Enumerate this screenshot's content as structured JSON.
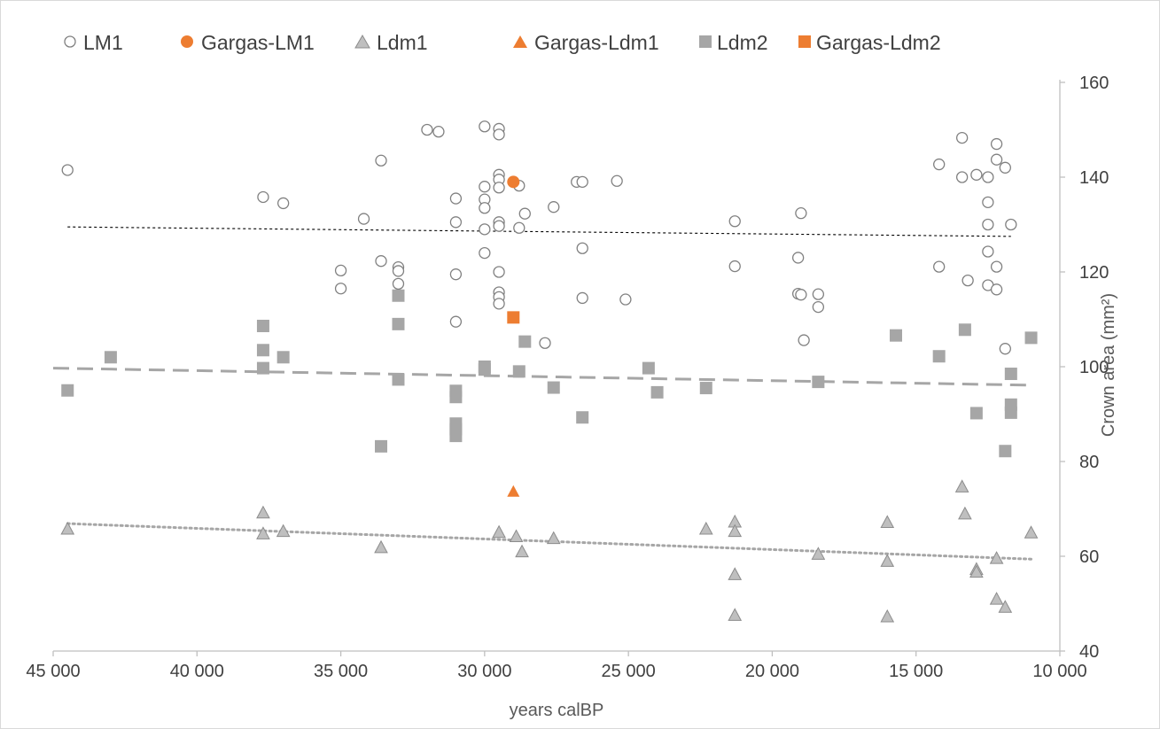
{
  "chart_data": {
    "type": "scatter",
    "title": "",
    "xlabel": "years calBP",
    "ylabel": "Crown area (mm²)",
    "x_reversed": true,
    "xlim": [
      45000,
      10000
    ],
    "ylim": [
      40,
      160
    ],
    "x_ticks": [
      45000,
      40000,
      35000,
      30000,
      25000,
      20000,
      15000,
      10000
    ],
    "x_tick_labels": [
      "45 000",
      "40 000",
      "35 000",
      "30 000",
      "25 000",
      "20 000",
      "15 000",
      "10 000"
    ],
    "y_ticks": [
      40,
      60,
      80,
      100,
      120,
      140,
      160
    ],
    "y_tick_labels": [
      "40",
      "60",
      "80",
      "100",
      "120",
      "140",
      "160"
    ],
    "y_axis_side": "right",
    "grid": false,
    "legend": {
      "position": "top"
    },
    "colors": {
      "gray": "#a6a6a6",
      "orange": "#ed7d31",
      "open_edge": "#808080",
      "axis": "#bfbfbf",
      "text": "#404040"
    },
    "series": [
      {
        "name": "LM1",
        "marker": "open-circle",
        "points": [
          [
            44500,
            141.5
          ],
          [
            37700,
            135.8
          ],
          [
            37000,
            134.5
          ],
          [
            35000,
            120.3
          ],
          [
            35000,
            116.5
          ],
          [
            34200,
            131.2
          ],
          [
            33600,
            143.5
          ],
          [
            33600,
            122.3
          ],
          [
            33000,
            121
          ],
          [
            33000,
            120.2
          ],
          [
            33000,
            117.5
          ],
          [
            32000,
            150
          ],
          [
            31600,
            149.6
          ],
          [
            31000,
            135.5
          ],
          [
            31000,
            130.5
          ],
          [
            31000,
            119.5
          ],
          [
            31000,
            109.5
          ],
          [
            30000,
            150.7
          ],
          [
            30000,
            138
          ],
          [
            30000,
            135.3
          ],
          [
            30000,
            133.5
          ],
          [
            30000,
            129
          ],
          [
            30000,
            124
          ],
          [
            29500,
            150.2
          ],
          [
            29500,
            149
          ],
          [
            29500,
            140.5
          ],
          [
            29500,
            139.5
          ],
          [
            29500,
            137.8
          ],
          [
            29500,
            130.5
          ],
          [
            29500,
            129.7
          ],
          [
            29500,
            120
          ],
          [
            29500,
            115.7
          ],
          [
            29500,
            114.7
          ],
          [
            29500,
            113.3
          ],
          [
            28800,
            138.2
          ],
          [
            28600,
            132.3
          ],
          [
            28800,
            129.3
          ],
          [
            27600,
            133.7
          ],
          [
            26800,
            139
          ],
          [
            26600,
            139
          ],
          [
            26600,
            125
          ],
          [
            26600,
            114.5
          ],
          [
            27900,
            105
          ],
          [
            25400,
            139.2
          ],
          [
            25100,
            114.2
          ],
          [
            21300,
            130.7
          ],
          [
            21300,
            121.2
          ],
          [
            19000,
            132.4
          ],
          [
            19100,
            123
          ],
          [
            19100,
            115.4
          ],
          [
            19000,
            115.2
          ],
          [
            18400,
            115.3
          ],
          [
            18400,
            112.6
          ],
          [
            18900,
            105.6
          ],
          [
            14200,
            142.7
          ],
          [
            14200,
            121.1
          ],
          [
            13400,
            148.3
          ],
          [
            13400,
            140
          ],
          [
            13200,
            118.2
          ],
          [
            12900,
            140.5
          ],
          [
            12500,
            140
          ],
          [
            12500,
            134.7
          ],
          [
            12500,
            130
          ],
          [
            12500,
            124.3
          ],
          [
            12500,
            117.2
          ],
          [
            12200,
            147
          ],
          [
            12200,
            143.7
          ],
          [
            12200,
            121.1
          ],
          [
            12200,
            116.3
          ],
          [
            11900,
            142
          ],
          [
            11700,
            130
          ],
          [
            11900,
            103.8
          ]
        ]
      },
      {
        "name": "Gargas-LM1",
        "marker": "filled-circle",
        "points": [
          [
            29000,
            139
          ]
        ]
      },
      {
        "name": "Ldm1",
        "marker": "triangle",
        "points": [
          [
            44500,
            65.8
          ],
          [
            37700,
            69.2
          ],
          [
            37700,
            64.8
          ],
          [
            37000,
            65.3
          ],
          [
            33600,
            61.9
          ],
          [
            29500,
            65.1
          ],
          [
            28900,
            64.2
          ],
          [
            28700,
            61
          ],
          [
            27600,
            63.8
          ],
          [
            22300,
            65.8
          ],
          [
            21300,
            67.3
          ],
          [
            21300,
            65.3
          ],
          [
            21300,
            56.2
          ],
          [
            21300,
            47.6
          ],
          [
            18400,
            60.5
          ],
          [
            16000,
            67.2
          ],
          [
            16000,
            59
          ],
          [
            16000,
            47.3
          ],
          [
            13400,
            74.7
          ],
          [
            13300,
            69
          ],
          [
            12900,
            57.3
          ],
          [
            12900,
            56.7
          ],
          [
            12200,
            59.6
          ],
          [
            12200,
            51
          ],
          [
            11900,
            49.3
          ],
          [
            11000,
            65
          ]
        ]
      },
      {
        "name": "Gargas-Ldm1",
        "marker": "triangle",
        "points": [
          [
            29000,
            73.7
          ]
        ]
      },
      {
        "name": "Ldm2",
        "marker": "square",
        "points": [
          [
            44500,
            95
          ],
          [
            43000,
            102
          ],
          [
            37700,
            108.6
          ],
          [
            37700,
            103.5
          ],
          [
            37700,
            99.7
          ],
          [
            37000,
            102
          ],
          [
            33600,
            83.2
          ],
          [
            33000,
            115
          ],
          [
            33000,
            109
          ],
          [
            33000,
            97.3
          ],
          [
            31000,
            94.9
          ],
          [
            31000,
            93.6
          ],
          [
            31000,
            88
          ],
          [
            31000,
            86.8
          ],
          [
            31000,
            85.4
          ],
          [
            30000,
            100
          ],
          [
            30000,
            99.4
          ],
          [
            28800,
            99
          ],
          [
            28600,
            105.3
          ],
          [
            27600,
            95.6
          ],
          [
            26600,
            89.3
          ],
          [
            24300,
            99.7
          ],
          [
            24000,
            94.6
          ],
          [
            22300,
            95.5
          ],
          [
            18400,
            96.8
          ],
          [
            15700,
            106.6
          ],
          [
            14200,
            102.2
          ],
          [
            13300,
            107.8
          ],
          [
            12900,
            90.2
          ],
          [
            11900,
            82.2
          ],
          [
            11700,
            98.5
          ],
          [
            11700,
            92
          ],
          [
            11700,
            90.3
          ],
          [
            11000,
            106.1
          ]
        ]
      },
      {
        "name": "Gargas-Ldm2",
        "marker": "square",
        "points": [
          [
            29000,
            110.4
          ]
        ]
      }
    ],
    "trendlines": [
      {
        "series": "LM1",
        "style": "dotted",
        "from": [
          44500,
          129.5
        ],
        "to": [
          11700,
          127.5
        ]
      },
      {
        "series": "Ldm2",
        "style": "dashed",
        "from": [
          45000,
          99.7
        ],
        "to": [
          11000,
          96.1
        ]
      },
      {
        "series": "Ldm1",
        "style": "dotted",
        "from": [
          44500,
          66.9
        ],
        "to": [
          11000,
          59.4
        ]
      }
    ]
  }
}
